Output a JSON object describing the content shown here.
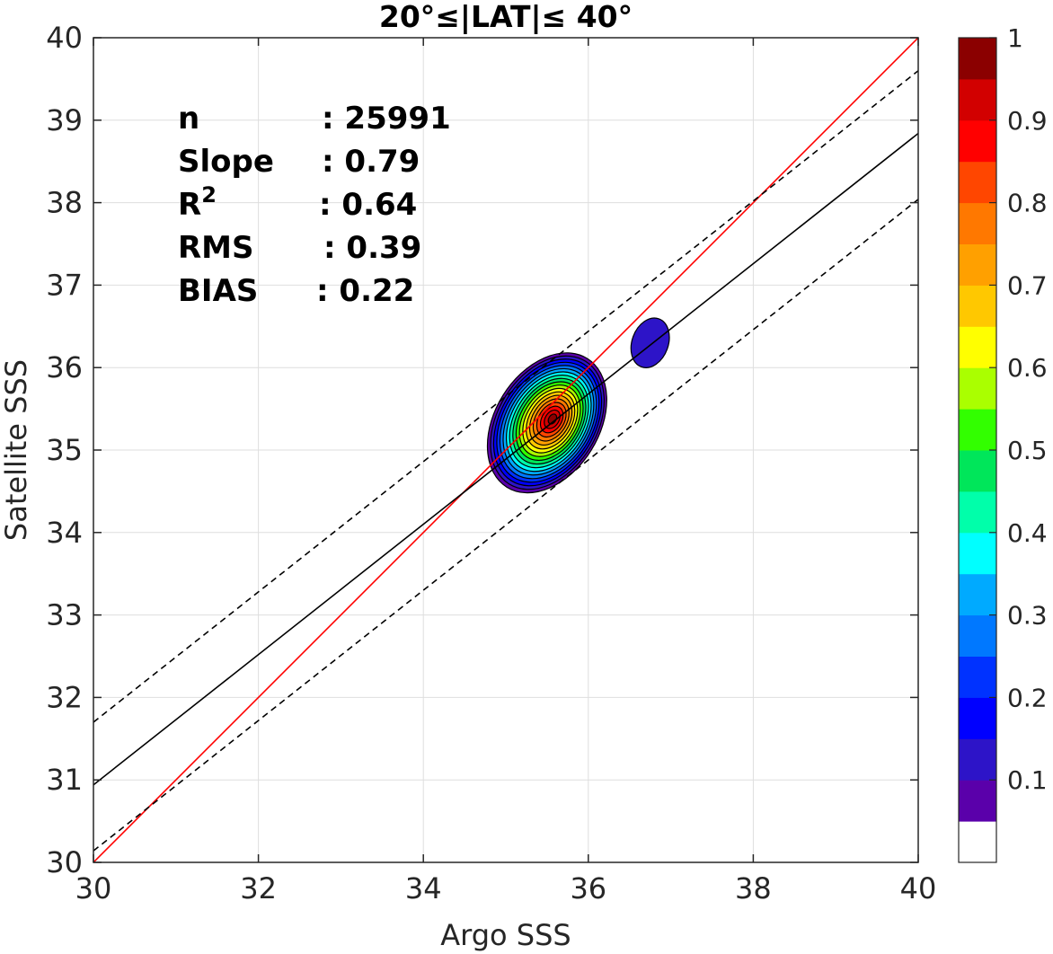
{
  "chart_data": {
    "type": "contour",
    "title": "20°≤|LAT|≤ 40°",
    "xlabel": "Argo SSS",
    "ylabel": "Satellite SSS",
    "xlim": [
      30,
      40
    ],
    "ylim": [
      30,
      40
    ],
    "xticks": [
      "30",
      "32",
      "34",
      "36",
      "38",
      "40"
    ],
    "yticks": [
      "30",
      "31",
      "32",
      "33",
      "34",
      "35",
      "36",
      "37",
      "38",
      "39",
      "40"
    ],
    "grid": true,
    "stats": [
      {
        "name": "n",
        "sep": ":",
        "value": "25991"
      },
      {
        "name": "Slope",
        "sep": ":",
        "value": "0.79"
      },
      {
        "name": "R",
        "sup": "2",
        "sep": ":",
        "value": "0.64"
      },
      {
        "name": "RMS",
        "sep": ":",
        "value": "0.39"
      },
      {
        "name": "BIAS",
        "sep": ":",
        "value": "0.22"
      }
    ],
    "lines": [
      {
        "name": "one-to-one",
        "color": "#ff0000",
        "style": "solid",
        "slope": 1.0,
        "intercept": 0.0
      },
      {
        "name": "fit",
        "color": "#000000",
        "style": "solid",
        "slope": 0.79,
        "intercept": 7.24
      },
      {
        "name": "fit+",
        "color": "#000000",
        "style": "dashed",
        "slope": 0.79,
        "intercept": 8.0
      },
      {
        "name": "fit-",
        "color": "#000000",
        "style": "dashed",
        "slope": 0.79,
        "intercept": 6.44
      }
    ],
    "density": {
      "peak_center": [
        35.5,
        35.33
      ],
      "secondary_center": [
        36.75,
        36.3
      ],
      "levels": [
        0.05,
        0.1,
        0.15,
        0.2,
        0.25,
        0.3,
        0.35,
        0.4,
        0.45,
        0.5,
        0.55,
        0.6,
        0.65,
        0.7,
        0.75,
        0.8,
        0.85,
        0.9,
        0.95
      ]
    },
    "colorbar": {
      "range": [
        0,
        1
      ],
      "ticks": [
        "0.1",
        "0.2",
        "0.3",
        "0.4",
        "0.5",
        "0.6",
        "0.7",
        "0.8",
        "0.9",
        "1"
      ],
      "colors": [
        "#ffffff",
        "#5a00aa",
        "#2d14c8",
        "#0000ff",
        "#0032ff",
        "#0078ff",
        "#00aaff",
        "#00ffff",
        "#00ffaa",
        "#00e65a",
        "#32ff00",
        "#aaff00",
        "#ffff00",
        "#ffc800",
        "#ffa000",
        "#ff7800",
        "#ff4600",
        "#ff0000",
        "#d20000",
        "#8b0000"
      ]
    }
  }
}
